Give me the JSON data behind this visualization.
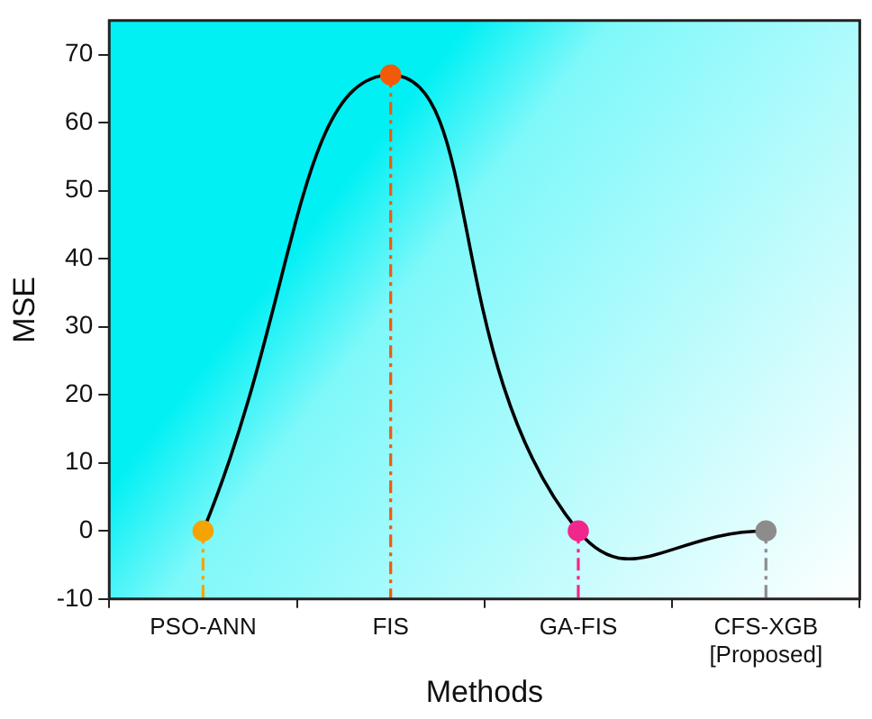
{
  "chart_data": {
    "type": "line",
    "xlabel": "Methods",
    "ylabel": "MSE",
    "categories": [
      "PSO-ANN",
      "FIS",
      "GA-FIS",
      "CFS-XGB [Proposed]"
    ],
    "series": [
      {
        "color": "#000000",
        "colors": [
          "#f5a300",
          "#f25a0a",
          "#f0288c",
          "#8c8c8c"
        ],
        "values": [
          0,
          67,
          0,
          0
        ]
      }
    ],
    "ref_lines": [
      {
        "axis": "x",
        "value": "PSO-ANN",
        "color": "#f5a300",
        "line_style": "dashed"
      },
      {
        "axis": "x",
        "value": "FIS",
        "color": "#f25a0a",
        "line_style": "dashed"
      },
      {
        "axis": "x",
        "value": "GA-FIS",
        "color": "#f0288c",
        "line_style": "dashed"
      },
      {
        "axis": "x",
        "value": "CFS-XGB [Proposed]",
        "color": "#8c8c8c",
        "line_style": "dashed"
      }
    ],
    "ylim": [
      -10,
      75
    ],
    "yticks": [
      -10,
      0,
      10,
      20,
      30,
      40,
      50,
      60,
      70
    ],
    "grid": false,
    "legend": false,
    "marker": "circle",
    "line_style": "solid"
  }
}
